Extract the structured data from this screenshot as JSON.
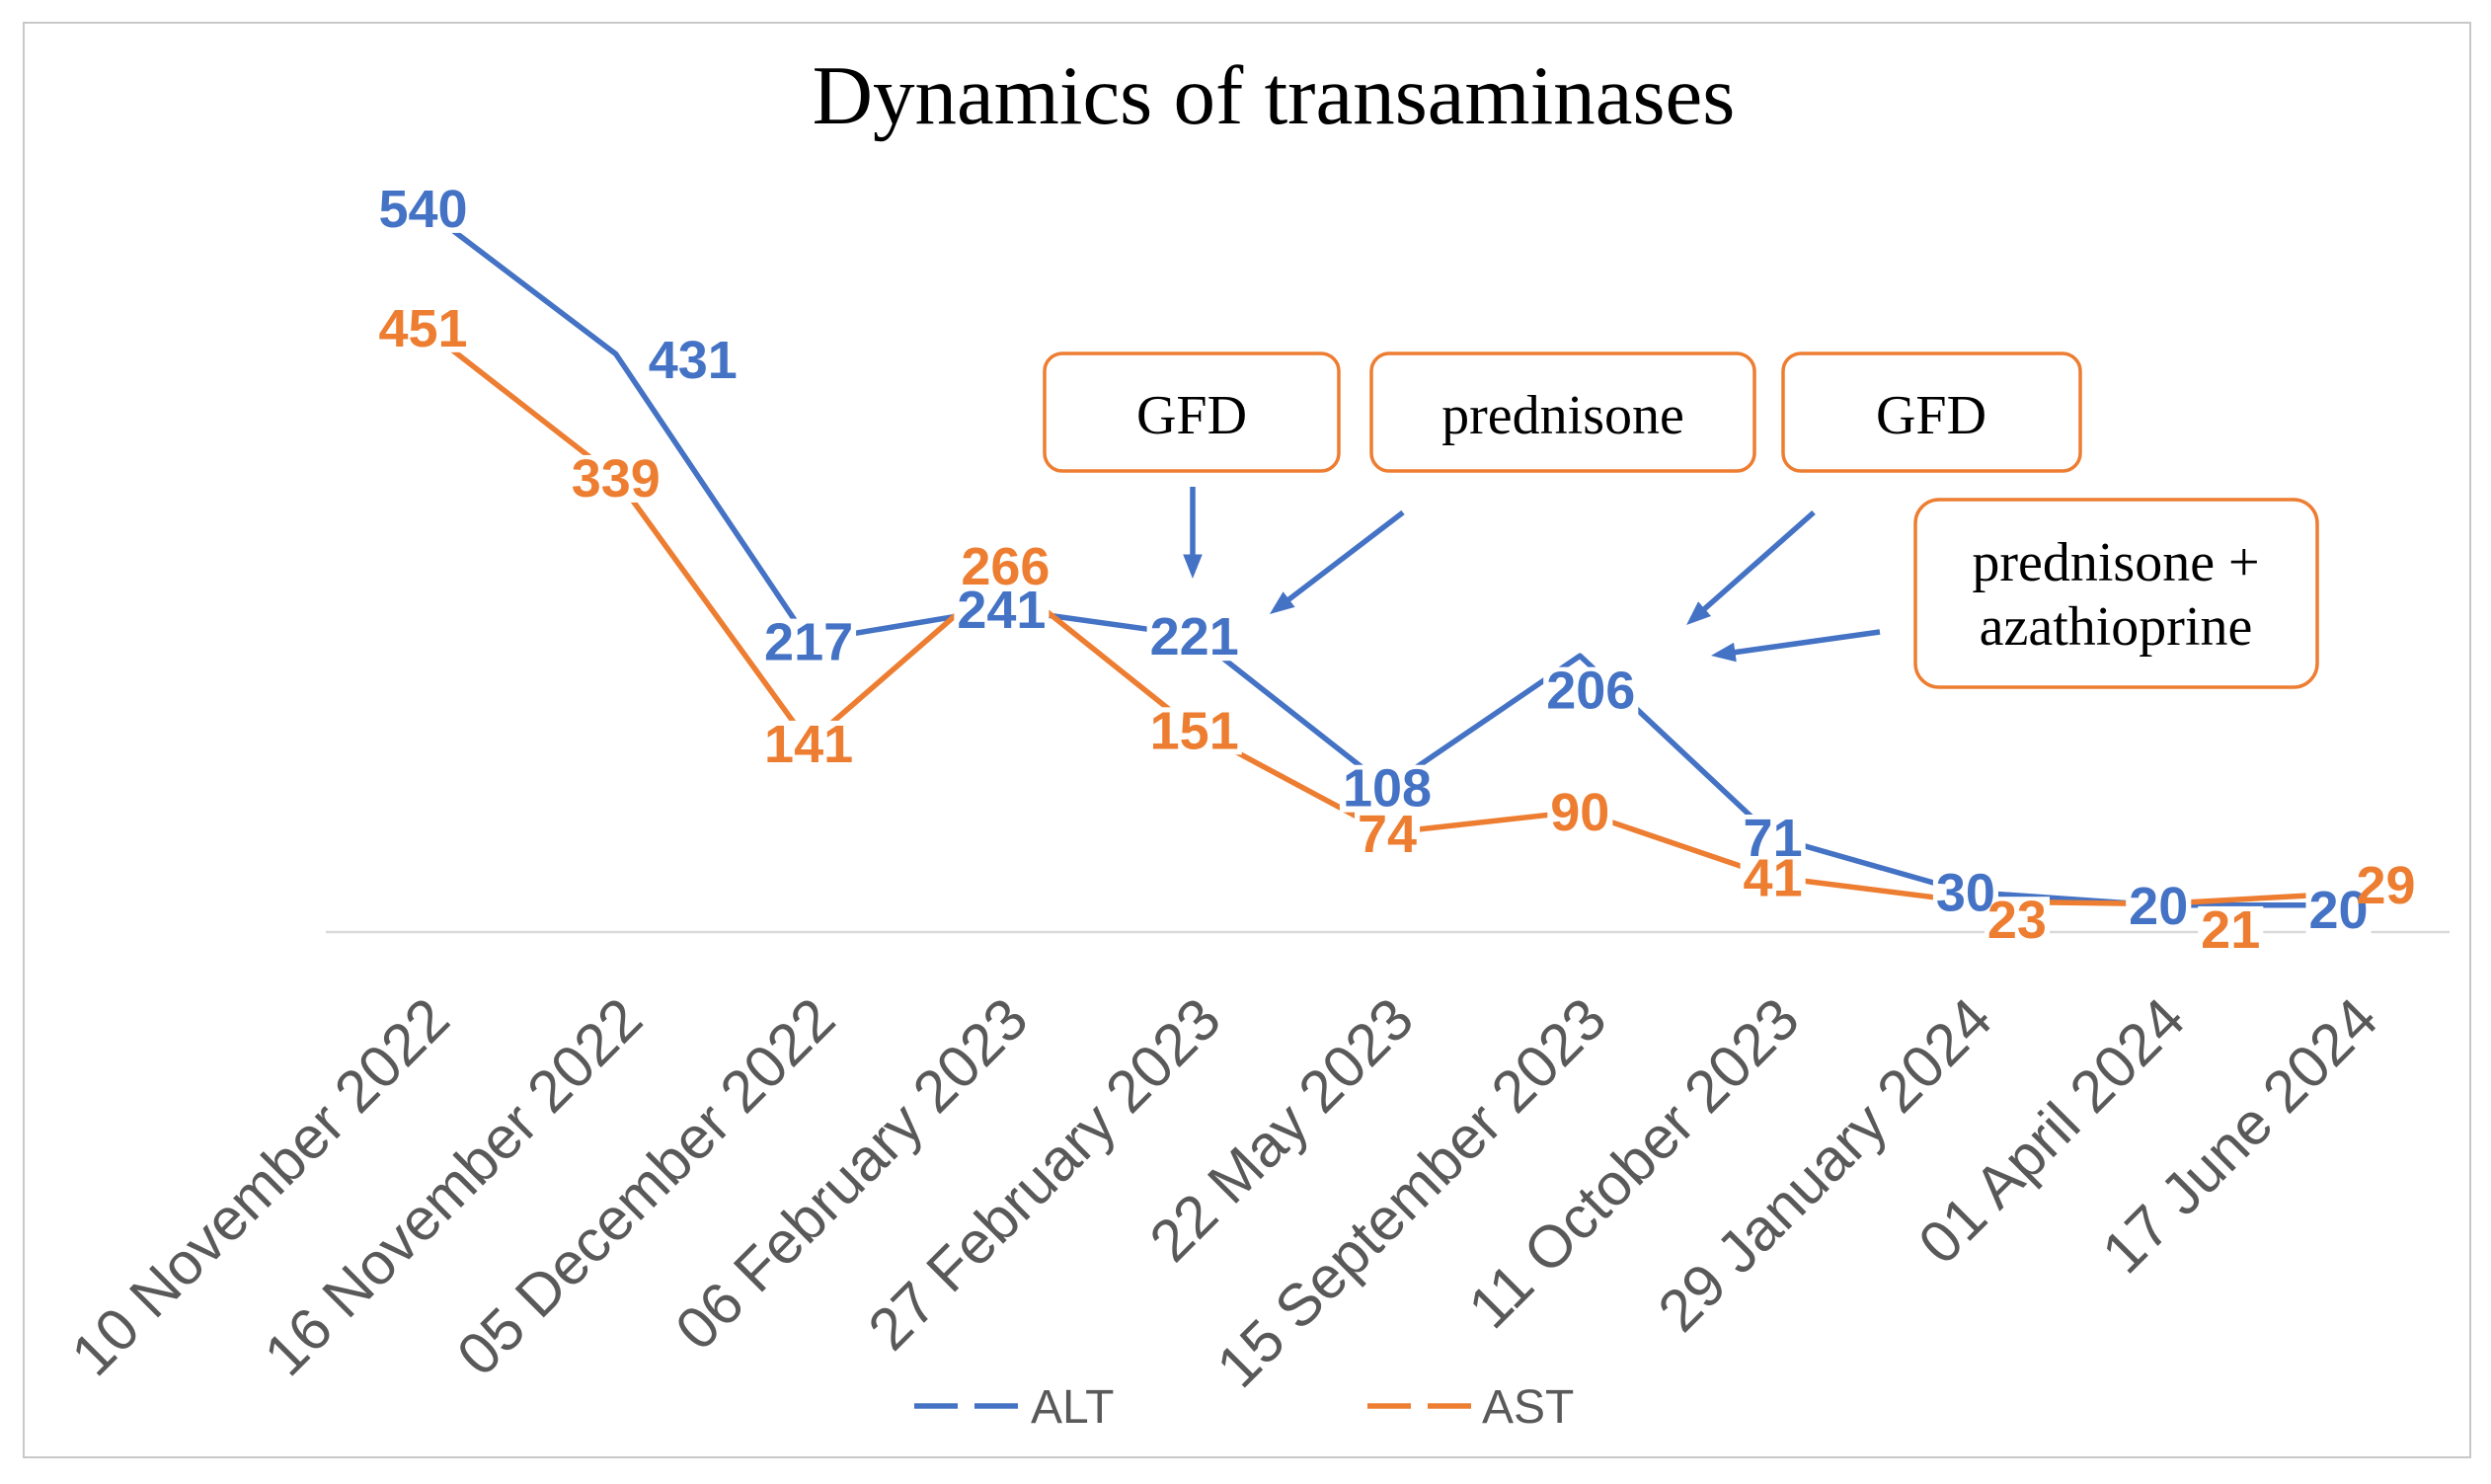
{
  "chart_data": {
    "type": "line",
    "title": "Dynamics of transaminases",
    "categories": [
      "10 November 2022",
      "16 November 2022",
      "05 December 2022",
      "06 February 2023",
      "27 February 2023",
      "22 May 2023",
      "15 September 2023",
      "11 October 2023",
      "29 January 2024",
      "01 April 2024",
      "17 June 2024"
    ],
    "series": [
      {
        "name": "ALT",
        "values": [
          540,
          431,
          217,
          241,
          221,
          108,
          206,
          71,
          30,
          20,
          20
        ]
      },
      {
        "name": "AST",
        "values": [
          451,
          339,
          141,
          266,
          151,
          74,
          90,
          41,
          23,
          21,
          29
        ]
      }
    ],
    "xlabel": "",
    "ylabel": "",
    "ylim": [
      0,
      600
    ],
    "grid": false,
    "legend": "bottom",
    "data_labels": true,
    "annotations": [
      {
        "text": "GFD"
      },
      {
        "text": "prednisone"
      },
      {
        "text": "GFD"
      },
      {
        "lines": [
          "prednisone +",
          "azathioprine"
        ]
      }
    ]
  },
  "colors": {
    "alt": "#4472C4",
    "ast": "#ED7D31",
    "annotation_border": "#ED7D31",
    "arrow": "#4472C4",
    "axis_line": "#D9D9D9",
    "border": "#C8C8C8"
  }
}
